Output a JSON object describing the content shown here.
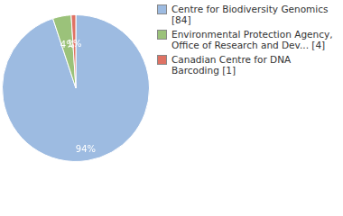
{
  "chart_data": {
    "type": "pie",
    "categories": [
      "Centre for Biodiversity Genomics [84]",
      "Environmental Protection Agency, Office of Research and Dev... [4]",
      "Canadian Centre for DNA Barcoding [1]"
    ],
    "values": [
      94,
      4,
      1
    ],
    "value_labels": [
      "94%",
      "4%",
      "1%"
    ],
    "colors": [
      "#9dbbe1",
      "#9bc27a",
      "#df7264"
    ],
    "data_labels": true,
    "legend": "right"
  }
}
